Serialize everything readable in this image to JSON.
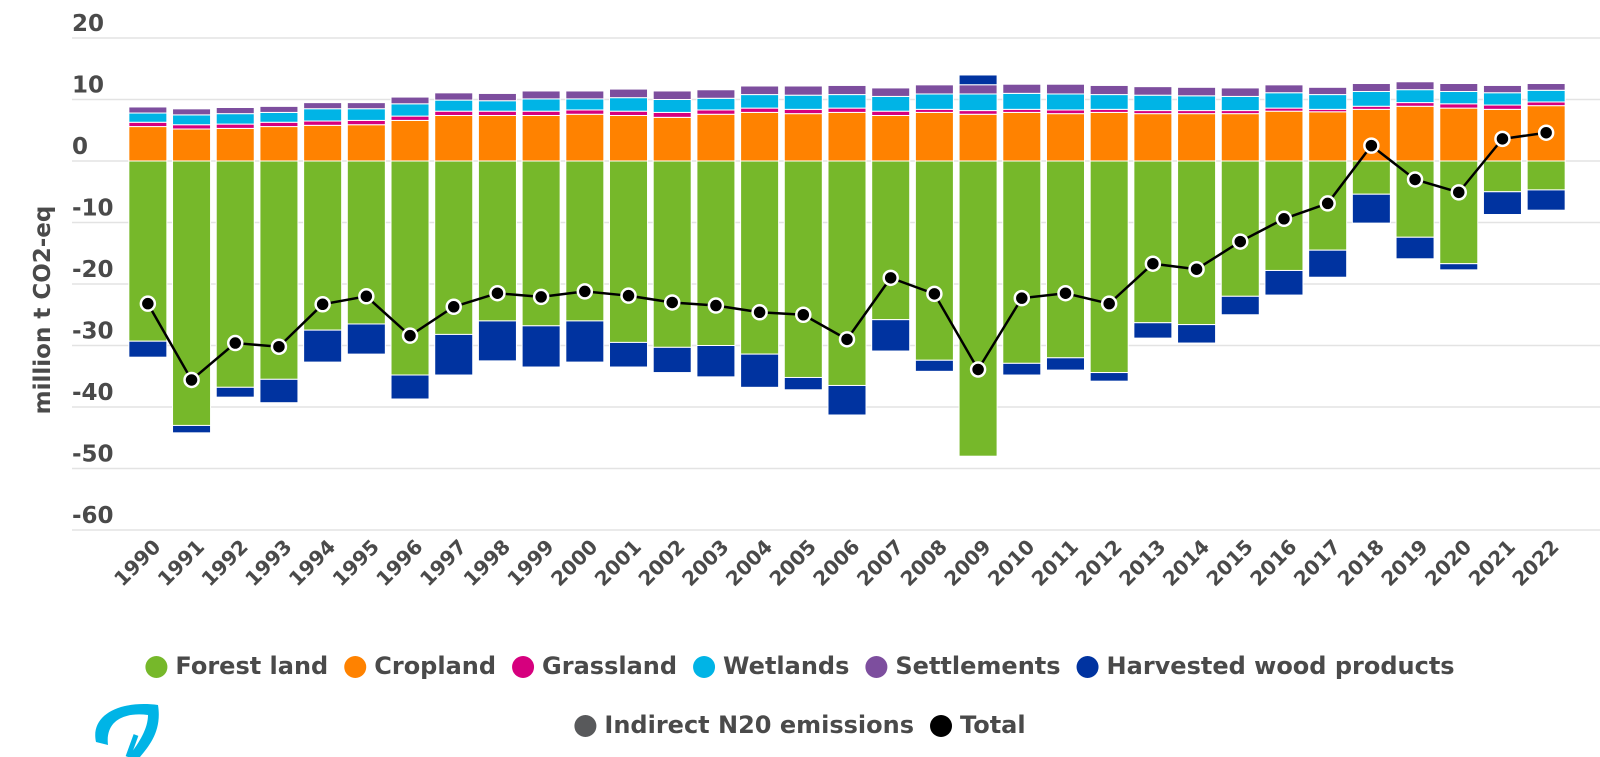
{
  "chart_data": {
    "type": "stacked-bar-line",
    "y_label": "million t CO2-eq",
    "categories": [
      "1990",
      "1991",
      "1992",
      "1993",
      "1994",
      "1995",
      "1996",
      "1997",
      "1998",
      "1999",
      "2000",
      "2001",
      "2002",
      "2003",
      "2004",
      "2005",
      "2006",
      "2007",
      "2008",
      "2009",
      "2010",
      "2011",
      "2012",
      "2013",
      "2014",
      "2015",
      "2016",
      "2017",
      "2018",
      "2019",
      "2020",
      "2021",
      "2022"
    ],
    "ylim": [
      -60,
      20
    ],
    "yticks": [
      -60,
      -50,
      -40,
      -30,
      -20,
      -10,
      0,
      10,
      20
    ],
    "grid": true,
    "series": [
      {
        "name": "Forest land",
        "color": "#76b82a",
        "values": [
          -29.3,
          -43,
          -36.8,
          -35.5,
          -27.5,
          -26.5,
          -34.8,
          -28.2,
          -26,
          -26.8,
          -26,
          -29.5,
          -30.3,
          -30,
          -31.4,
          -35.2,
          -36.5,
          -25.8,
          -32.4,
          -48,
          -32.9,
          -32,
          -34.4,
          -26.3,
          -26.6,
          -22,
          -17.8,
          -14.5,
          -5.4,
          -12.4,
          -16.7,
          -5,
          -4.7
        ]
      },
      {
        "name": "Cropland",
        "color": "#ff8200",
        "values": [
          5.6,
          5.2,
          5.3,
          5.6,
          5.8,
          5.9,
          6.6,
          7.4,
          7.4,
          7.4,
          7.6,
          7.4,
          7.1,
          7.6,
          7.9,
          7.7,
          7.9,
          7.4,
          7.9,
          7.6,
          7.9,
          7.7,
          7.9,
          7.7,
          7.7,
          7.7,
          8.1,
          8.0,
          8.4,
          8.9,
          8.6,
          8.4,
          9.0
        ]
      },
      {
        "name": "Grassland",
        "color": "#d6007e",
        "values": [
          0.7,
          0.7,
          0.7,
          0.7,
          0.7,
          0.7,
          0.7,
          0.7,
          0.7,
          0.7,
          0.7,
          0.7,
          0.8,
          0.7,
          0.7,
          0.7,
          0.7,
          0.7,
          0.5,
          0.6,
          0.5,
          0.6,
          0.5,
          0.5,
          0.5,
          0.5,
          0.5,
          0.4,
          0.5,
          0.6,
          0.7,
          0.7,
          0.6
        ]
      },
      {
        "name": "Wetlands",
        "color": "#00b4e6",
        "values": [
          1.5,
          1.6,
          1.7,
          1.6,
          2.0,
          1.9,
          2.0,
          1.8,
          1.7,
          2.0,
          1.8,
          2.2,
          2.1,
          1.9,
          2.2,
          2.3,
          2.2,
          2.4,
          2.5,
          2.7,
          2.6,
          2.6,
          2.4,
          2.5,
          2.4,
          2.3,
          2.5,
          2.4,
          2.4,
          2.1,
          2.0,
          2.0,
          1.9
        ]
      },
      {
        "name": "Settlements",
        "color": "#7d4e9e",
        "values": [
          1.0,
          1.0,
          1.0,
          1.0,
          1.0,
          1.0,
          1.1,
          1.2,
          1.2,
          1.3,
          1.3,
          1.4,
          1.4,
          1.4,
          1.4,
          1.5,
          1.5,
          1.4,
          1.5,
          1.5,
          1.5,
          1.6,
          1.5,
          1.4,
          1.4,
          1.4,
          1.3,
          1.2,
          1.3,
          1.3,
          1.3,
          1.2,
          1.1
        ]
      },
      {
        "name": "Harvested wood products",
        "color": "#0033a0",
        "values": [
          -2.6,
          -1.2,
          -1.6,
          -3.8,
          -5.2,
          -4.9,
          -3.9,
          -6.6,
          -6.5,
          -6.7,
          -6.7,
          -4,
          -4.1,
          -5.1,
          -5.4,
          -2,
          -4.8,
          -5.1,
          -1.8,
          1.6,
          -1.9,
          -2,
          -1.4,
          -2.5,
          -3,
          -3,
          -4,
          -4.4,
          -4.7,
          -3.5,
          -1,
          -3.7,
          -3.3
        ]
      },
      {
        "name": "Indirect N20 emissions",
        "color": "#58595b",
        "values": [
          0.1,
          0.1,
          0.1,
          0.1,
          0.1,
          0.1,
          0.1,
          0.1,
          0.1,
          0.1,
          0.1,
          0.1,
          0.1,
          0.1,
          0.1,
          0.1,
          0.1,
          0.1,
          0.1,
          0.1,
          0.1,
          0.1,
          0.1,
          0.1,
          0.1,
          0.1,
          0.1,
          0.1,
          0.1,
          0.1,
          0.1,
          0.1,
          0.1
        ]
      },
      {
        "name": "Total",
        "color": "#000000",
        "kind": "line",
        "values": [
          -23.2,
          -35.6,
          -29.6,
          -30.2,
          -23.3,
          -22,
          -28.4,
          -23.7,
          -21.5,
          -22.1,
          -21.2,
          -21.9,
          -23,
          -23.5,
          -24.6,
          -25,
          -29,
          -19,
          -21.6,
          -33.9,
          -22.3,
          -21.5,
          -23.2,
          -16.7,
          -17.6,
          -13.1,
          -9.4,
          -6.9,
          2.5,
          -3,
          -5.1,
          3.6,
          4.6
        ]
      }
    ]
  }
}
